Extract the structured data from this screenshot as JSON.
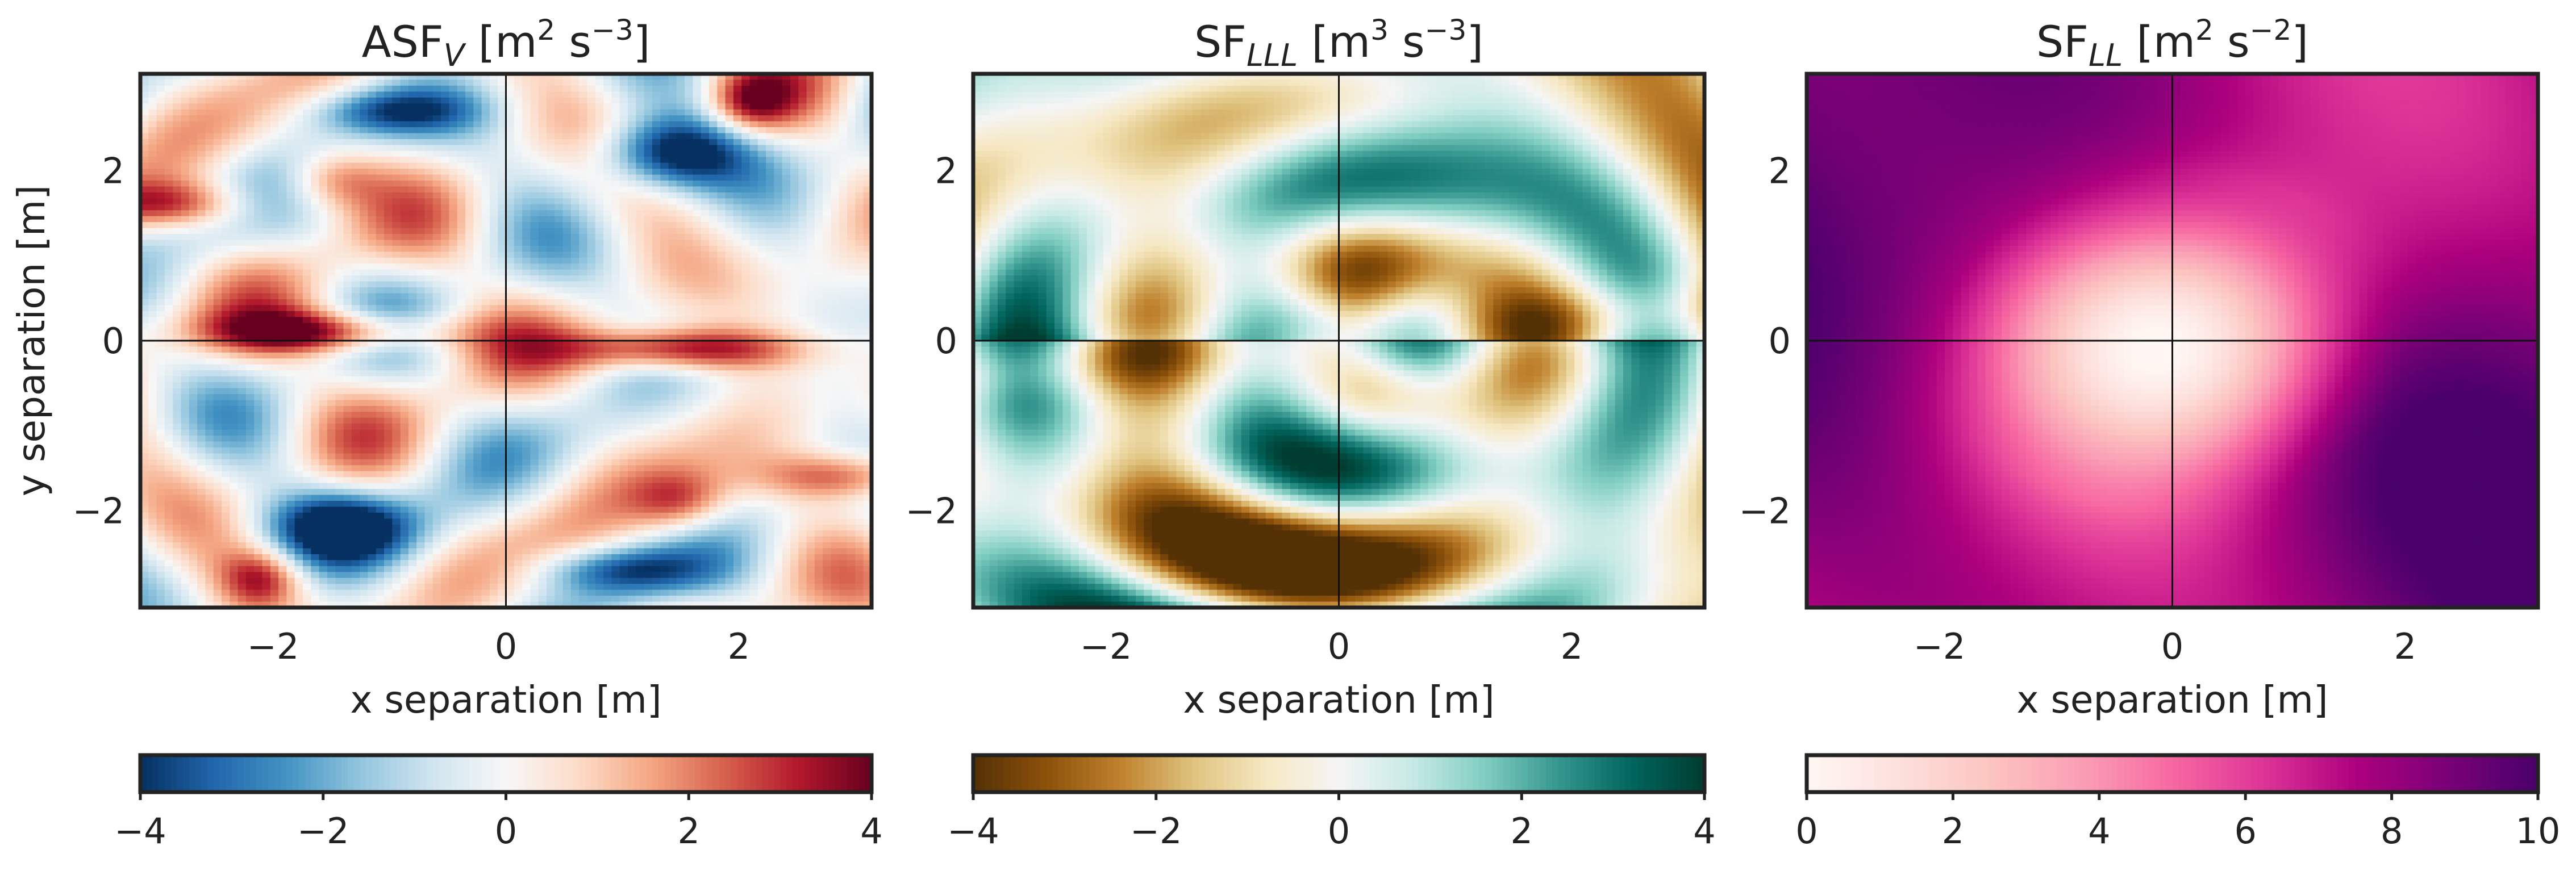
{
  "chart_data": [
    {
      "type": "heatmap",
      "title": "ASF",
      "title_subscript": "V",
      "title_units": "[m",
      "title_units_exp1": "2",
      "title_units_mid": " s",
      "title_units_exp2": "−3",
      "title_units_end": "]",
      "xlabel": "x separation [m]",
      "ylabel": "y separation [m]",
      "xlim": [
        -3.14,
        3.14
      ],
      "ylim": [
        -3.14,
        3.14
      ],
      "xticks": [
        -2,
        0,
        2
      ],
      "xtick_labels": [
        "−2",
        "0",
        "2"
      ],
      "yticks": [
        2,
        0,
        -2
      ],
      "ytick_labels": [
        "2",
        "0",
        "−2"
      ],
      "colormap": "RdBu_r",
      "colors": [
        "#053061",
        "#2166ac",
        "#4393c3",
        "#92c5de",
        "#d1e5f0",
        "#f7f7f7",
        "#fddbc7",
        "#f4a582",
        "#d6604d",
        "#b2182b",
        "#67001f"
      ],
      "colorbar": {
        "min": -4,
        "max": 4,
        "ticks": [
          -4,
          -2,
          0,
          2,
          4
        ],
        "tick_labels": [
          "−4",
          "−2",
          "0",
          "2",
          "4"
        ]
      }
    },
    {
      "type": "heatmap",
      "title": "SF",
      "title_subscript": "LLL",
      "title_units": "[m",
      "title_units_exp1": "3",
      "title_units_mid": " s",
      "title_units_exp2": "−3",
      "title_units_end": "]",
      "xlabel": "x separation [m]",
      "ylabel": "",
      "xlim": [
        -3.14,
        3.14
      ],
      "ylim": [
        -3.14,
        3.14
      ],
      "xticks": [
        -2,
        0,
        2
      ],
      "xtick_labels": [
        "−2",
        "0",
        "2"
      ],
      "yticks": [
        2,
        0,
        -2
      ],
      "ytick_labels": [
        "2",
        "0",
        "−2"
      ],
      "colormap": "BrBG",
      "colors": [
        "#543005",
        "#8c510a",
        "#bf812d",
        "#dfc27d",
        "#f6e8c3",
        "#f5f5f5",
        "#c7eae5",
        "#80cdc1",
        "#35978f",
        "#01665e",
        "#003c30"
      ],
      "colorbar": {
        "min": -4,
        "max": 4,
        "ticks": [
          -4,
          -2,
          0,
          2,
          4
        ],
        "tick_labels": [
          "−4",
          "−2",
          "0",
          "2",
          "4"
        ]
      }
    },
    {
      "type": "heatmap",
      "title": "SF",
      "title_subscript": "LL",
      "title_units": "[m",
      "title_units_exp1": "2",
      "title_units_mid": " s",
      "title_units_exp2": "−2",
      "title_units_end": "]",
      "xlabel": "x separation [m]",
      "ylabel": "",
      "xlim": [
        -3.14,
        3.14
      ],
      "ylim": [
        -3.14,
        3.14
      ],
      "xticks": [
        -2,
        0,
        2
      ],
      "xtick_labels": [
        "−2",
        "0",
        "2"
      ],
      "yticks": [
        2,
        0,
        -2
      ],
      "ytick_labels": [
        "2",
        "0",
        "−2"
      ],
      "colormap": "RdPu",
      "colors": [
        "#fff7f3",
        "#fde0dd",
        "#fcc5c0",
        "#fa9fb5",
        "#f768a1",
        "#dd3497",
        "#ae017e",
        "#7a0177",
        "#49006a"
      ],
      "colorbar": {
        "min": 0,
        "max": 10,
        "ticks": [
          0,
          2,
          4,
          6,
          8,
          10
        ],
        "tick_labels": [
          "0",
          "2",
          "4",
          "6",
          "8",
          "10"
        ]
      }
    }
  ]
}
